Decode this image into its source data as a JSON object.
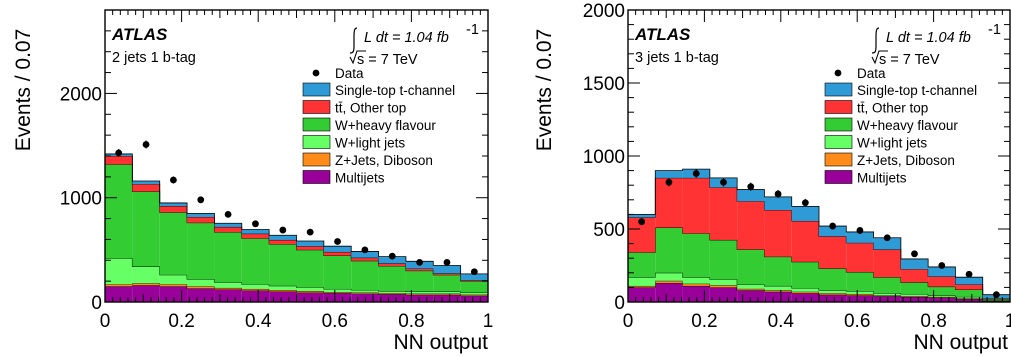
{
  "chart_data": [
    {
      "type": "bar",
      "subtype": "stacked-histogram",
      "ylabel": "Events / 0.07",
      "xlabel": "NN output",
      "xlim": [
        0,
        1
      ],
      "ylim": [
        0,
        2800
      ],
      "xticks": [
        "0",
        "0.2",
        "0.4",
        "0.6",
        "0.8",
        "1"
      ],
      "yticks": [
        "0",
        "1000",
        "2000"
      ],
      "experiment": "ATLAS",
      "luminosity_text": "L dt = 1.04 fb",
      "luminosity_sup": "-1",
      "energy_text": "s = 7 TeV",
      "selection": "2 jets 1 b-tag",
      "legend_position": "top-right",
      "bin_edges": [
        0,
        0.0714,
        0.1429,
        0.2143,
        0.2857,
        0.3571,
        0.4286,
        0.5,
        0.5714,
        0.6429,
        0.7143,
        0.7857,
        0.8571,
        0.9286,
        1.0
      ],
      "series": [
        {
          "name": "Multijets",
          "color": "#990099",
          "values": [
            150,
            160,
            150,
            130,
            120,
            110,
            100,
            90,
            85,
            80,
            75,
            70,
            70,
            60
          ]
        },
        {
          "name": "Z+Jets, Diboson",
          "color": "#ff8c1a",
          "values": [
            20,
            20,
            20,
            20,
            15,
            15,
            15,
            15,
            10,
            10,
            10,
            10,
            10,
            10
          ]
        },
        {
          "name": "W+light jets",
          "color": "#66ff66",
          "values": [
            250,
            160,
            90,
            70,
            55,
            45,
            40,
            35,
            30,
            25,
            20,
            20,
            20,
            20
          ]
        },
        {
          "name": "W+heavy flavour",
          "color": "#33cc33",
          "values": [
            900,
            720,
            600,
            540,
            480,
            440,
            400,
            360,
            320,
            280,
            240,
            200,
            160,
            110
          ]
        },
        {
          "name": "tt̄, Other top",
          "color": "#ff3333",
          "values": [
            80,
            70,
            60,
            55,
            50,
            45,
            40,
            35,
            35,
            30,
            25,
            20,
            15,
            10
          ]
        },
        {
          "name": "Single-top t-channel",
          "color": "#2e9bd6",
          "values": [
            20,
            30,
            30,
            35,
            35,
            40,
            45,
            50,
            55,
            60,
            65,
            70,
            75,
            60
          ]
        }
      ],
      "data": {
        "name": "Data",
        "values": [
          1430,
          1510,
          1170,
          980,
          840,
          750,
          690,
          670,
          580,
          500,
          440,
          380,
          380,
          290
        ]
      }
    },
    {
      "type": "bar",
      "subtype": "stacked-histogram",
      "ylabel": "Events / 0.07",
      "xlabel": "NN output",
      "xlim": [
        0,
        1
      ],
      "ylim": [
        0,
        2000
      ],
      "xticks": [
        "0",
        "0.2",
        "0.4",
        "0.6",
        "0.8",
        "1"
      ],
      "yticks": [
        "0",
        "500",
        "1000",
        "1500",
        "2000"
      ],
      "experiment": "ATLAS",
      "luminosity_text": "L dt = 1.04 fb",
      "luminosity_sup": "-1",
      "energy_text": "s = 7 TeV",
      "selection": "3 jets 1 b-tag",
      "legend_position": "top-right",
      "bin_edges": [
        0,
        0.0714,
        0.1429,
        0.2143,
        0.2857,
        0.3571,
        0.4286,
        0.5,
        0.5714,
        0.6429,
        0.7143,
        0.7857,
        0.8571,
        0.9286,
        1.0
      ],
      "series": [
        {
          "name": "Multijets",
          "color": "#990099",
          "values": [
            100,
            130,
            110,
            100,
            80,
            70,
            60,
            50,
            45,
            40,
            35,
            30,
            20,
            5
          ]
        },
        {
          "name": "Z+Jets, Diboson",
          "color": "#ff8c1a",
          "values": [
            10,
            15,
            15,
            15,
            10,
            10,
            10,
            10,
            10,
            5,
            5,
            5,
            5,
            2
          ]
        },
        {
          "name": "W+light jets",
          "color": "#66ff66",
          "values": [
            60,
            55,
            45,
            40,
            30,
            30,
            25,
            20,
            20,
            15,
            15,
            10,
            10,
            3
          ]
        },
        {
          "name": "W+heavy flavour",
          "color": "#33cc33",
          "values": [
            170,
            310,
            300,
            270,
            240,
            200,
            180,
            150,
            130,
            110,
            80,
            60,
            50,
            10
          ]
        },
        {
          "name": "tt̄, Other top",
          "color": "#ff3333",
          "values": [
            240,
            340,
            380,
            360,
            330,
            320,
            280,
            220,
            200,
            190,
            90,
            70,
            35,
            5
          ]
        },
        {
          "name": "Single-top t-channel",
          "color": "#2e9bd6",
          "values": [
            20,
            50,
            60,
            65,
            80,
            90,
            100,
            70,
            75,
            80,
            70,
            65,
            50,
            25
          ]
        }
      ],
      "data": {
        "name": "Data",
        "values": [
          550,
          820,
          880,
          820,
          790,
          740,
          680,
          520,
          490,
          440,
          330,
          250,
          190,
          50
        ]
      }
    }
  ]
}
